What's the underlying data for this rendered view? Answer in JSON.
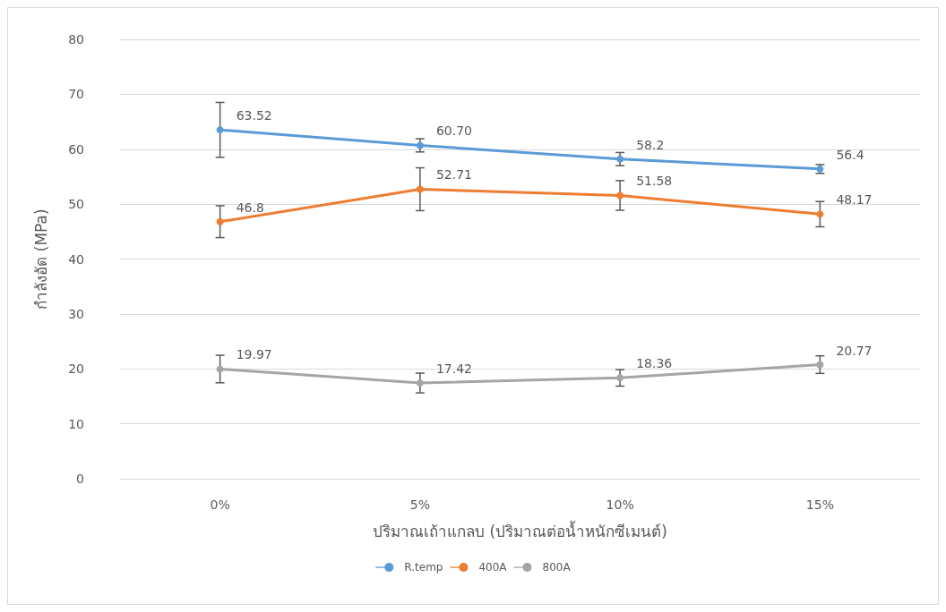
{
  "chart_data": {
    "type": "line",
    "xlabel": "ปริมาณเถ้าแกลบ (ปริมาณต่อน้ำหนักซีเมนต์)",
    "ylabel": "กำลังอัด (MPa)",
    "categories": [
      "0%",
      "5%",
      "10%",
      "15%"
    ],
    "ylim": [
      0,
      80
    ],
    "yticks": [
      0,
      10,
      20,
      30,
      40,
      50,
      60,
      70,
      80
    ],
    "grid": "y",
    "legend": "bottom",
    "marker": "circle",
    "line_style": "solid",
    "series": [
      {
        "name": "R.temp",
        "color": "#5b9bd5",
        "values": [
          63.52,
          60.7,
          58.2,
          56.4
        ],
        "value_labels": [
          "63.52",
          "60.70",
          "58.2",
          "56.4"
        ],
        "errors": [
          5,
          1.2,
          1.2,
          0.8
        ]
      },
      {
        "name": "400A",
        "color": "#ed7d31",
        "values": [
          46.8,
          52.71,
          51.58,
          48.17
        ],
        "value_labels": [
          "46.8",
          "52.71",
          "51.58",
          "48.17"
        ],
        "errors": [
          2.9,
          3.9,
          2.7,
          2.3
        ]
      },
      {
        "name": "800A",
        "color": "#a5a5a5",
        "values": [
          19.97,
          17.42,
          18.36,
          20.77
        ],
        "value_labels": [
          "19.97",
          "17.42",
          "18.36",
          "20.77"
        ],
        "errors": [
          2.5,
          1.8,
          1.5,
          1.6
        ]
      }
    ]
  }
}
